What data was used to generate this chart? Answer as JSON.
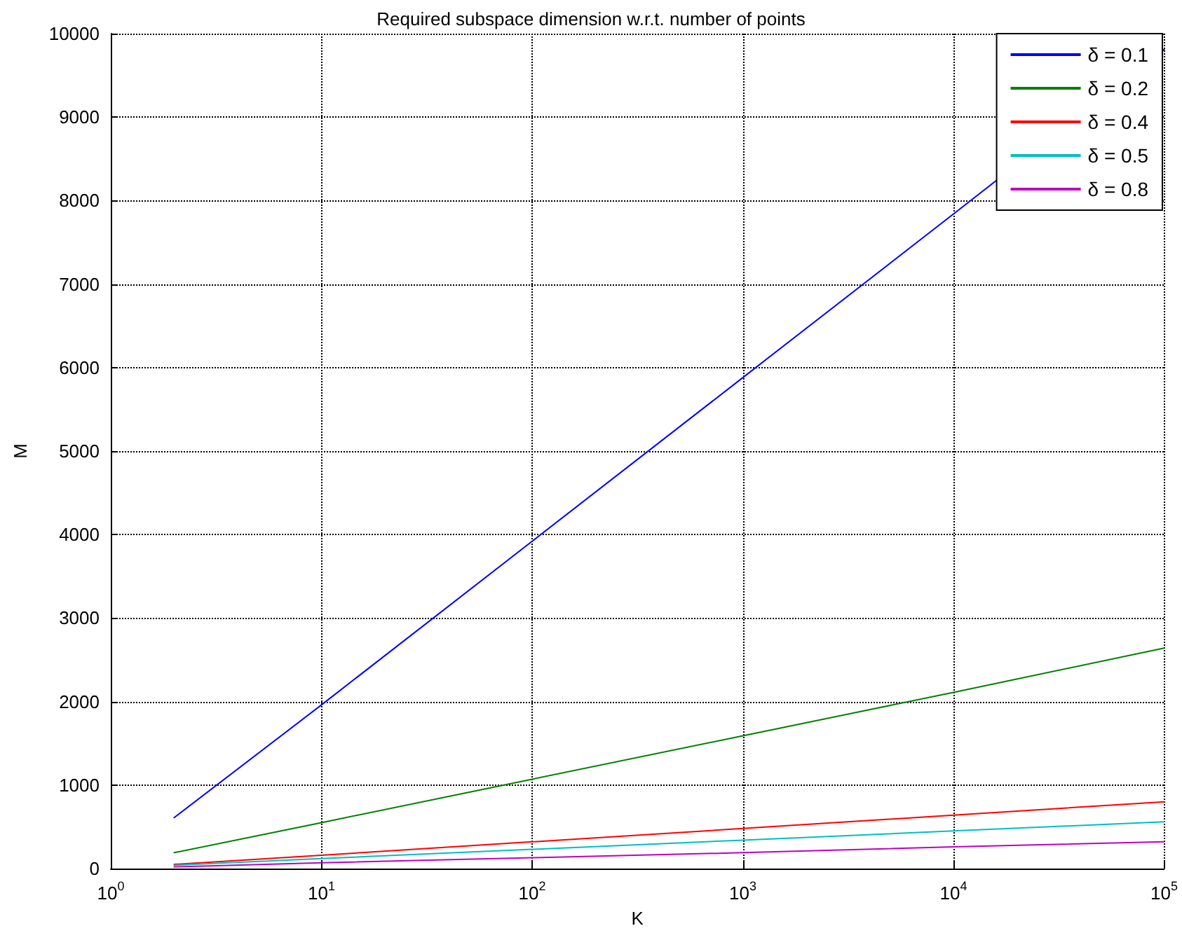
{
  "chart_data": {
    "type": "line",
    "title": "Required subspace dimension w.r.t. number of points",
    "xlabel": "K",
    "ylabel": "M",
    "x": [
      2,
      10,
      100,
      1000,
      10000,
      100000
    ],
    "series": [
      {
        "name": "δ = 0.1",
        "color": "#0000ff",
        "values": [
          610,
          1960,
          3920,
          5880,
          7840,
          9810
        ]
      },
      {
        "name": "δ = 0.2",
        "color": "#008000",
        "values": [
          190,
          550,
          1070,
          1590,
          2110,
          2640
        ]
      },
      {
        "name": "δ = 0.4",
        "color": "#ff0000",
        "values": [
          50,
          160,
          320,
          480,
          640,
          800
        ]
      },
      {
        "name": "δ = 0.5",
        "color": "#00bfbf",
        "values": [
          40,
          120,
          230,
          340,
          450,
          560
        ]
      },
      {
        "name": "δ = 0.8",
        "color": "#bf00bf",
        "values": [
          20,
          70,
          130,
          190,
          260,
          320
        ]
      }
    ],
    "log": "x",
    "xlim": [
      1,
      100000
    ],
    "xticks": [
      {
        "value": 1,
        "label": "10$^{0}$"
      },
      {
        "value": 10,
        "label": "10$^{1}$"
      },
      {
        "value": 100,
        "label": "10$^{2}$"
      },
      {
        "value": 1000,
        "label": "10$^{3}$"
      },
      {
        "value": 10000,
        "label": "10$^{4}$"
      },
      {
        "value": 100000,
        "label": "10$^{5}$"
      }
    ],
    "ylim": [
      0,
      10000
    ],
    "yticks": [
      0,
      1000,
      2000,
      3000,
      4000,
      5000,
      6000,
      7000,
      8000,
      9000,
      10000
    ],
    "grid": true,
    "legend": "top right",
    "marker": "none",
    "line_style": "solid"
  }
}
